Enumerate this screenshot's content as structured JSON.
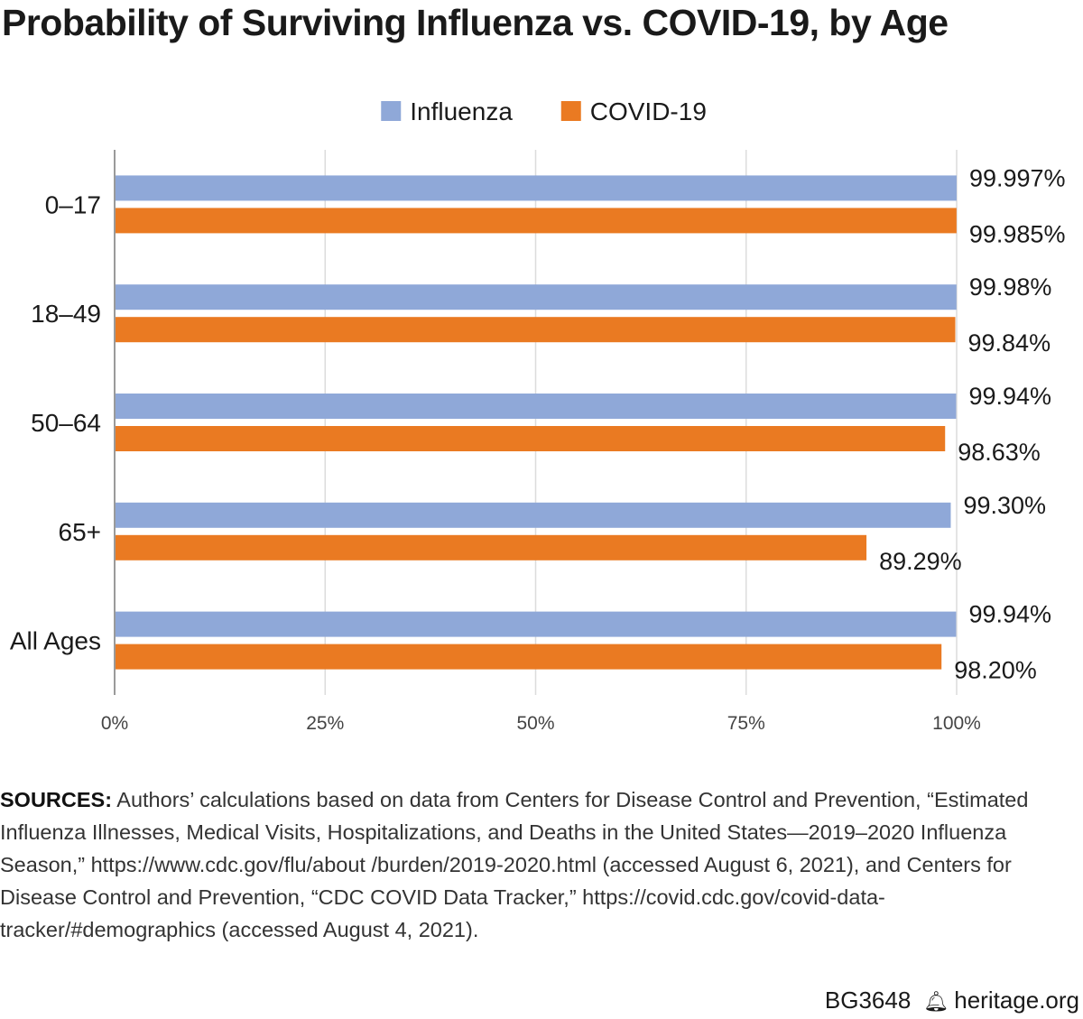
{
  "chart_data": {
    "type": "bar",
    "orientation": "horizontal",
    "title": "Probability of Surviving Influenza vs. COVID-19, by Age",
    "categories": [
      "0–17",
      "18–49",
      "50–64",
      "65+",
      "All Ages"
    ],
    "series": [
      {
        "name": "Influenza",
        "color": "#8fa8d8",
        "values": [
          99.997,
          99.98,
          99.94,
          99.3,
          99.94
        ],
        "labels": [
          "99.997%",
          "99.98%",
          "99.94%",
          "99.30%",
          "99.94%"
        ]
      },
      {
        "name": "COVID-19",
        "color": "#ea7a22",
        "values": [
          99.985,
          99.84,
          98.63,
          89.29,
          98.2
        ],
        "labels": [
          "99.985%",
          "99.84%",
          "98.63%",
          "89.29%",
          "98.20%"
        ]
      }
    ],
    "xlim": [
      0,
      100
    ],
    "xticks": [
      0,
      25,
      50,
      75,
      100
    ],
    "xtick_labels": [
      "0%",
      "25%",
      "50%",
      "75%",
      "100%"
    ],
    "xlabel": "",
    "ylabel": "",
    "grid": true,
    "legend_position": "top-center"
  },
  "sources": {
    "label": "SOURCES:",
    "text": "Authors’ calculations based on data from Centers for Disease Control and Prevention, “Estimated Influenza Illnesses, Medical Visits, Hospitalizations, and Deaths in the United States—2019–2020 Influenza Season,” https://www.cdc.gov/flu/about /burden/2019-2020.html (accessed August 6, 2021), and Centers for Disease Control and Prevention, “CDC COVID Data Tracker,” https://covid.cdc.gov/covid-data-tracker/#demographics (accessed August 4, 2021)."
  },
  "footer": {
    "code": "BG3648",
    "icon": "liberty-bell-icon",
    "site": "heritage.org"
  }
}
